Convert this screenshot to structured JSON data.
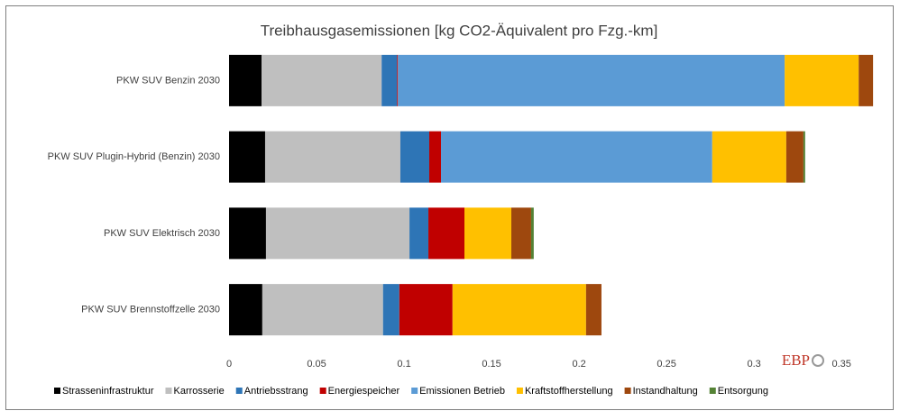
{
  "chart_data": {
    "type": "stacked_bar_horizontal",
    "title": "Treibhausgasemissionen [kg CO2-Äquivalent pro Fzg.-km]",
    "categories": [
      "PKW SUV Benzin 2030",
      "PKW SUV Plugin-Hybrid (Benzin) 2030",
      "PKW SUV Elektrisch 2030",
      "PKW SUV Brennstoffzelle 2030"
    ],
    "series": [
      {
        "name": "Strasseninfrastruktur",
        "color": "#000000",
        "values": [
          0.0186,
          0.0206,
          0.0211,
          0.019
        ]
      },
      {
        "name": "Karrosserie",
        "color": "#bfbfbf",
        "values": [
          0.0686,
          0.0773,
          0.082,
          0.069
        ]
      },
      {
        "name": "Antriebsstrang",
        "color": "#2e75b6",
        "values": [
          0.0088,
          0.0165,
          0.0108,
          0.0093
        ]
      },
      {
        "name": "Energiespeicher",
        "color": "#c00000",
        "values": [
          0.0005,
          0.0067,
          0.0206,
          0.0304
        ]
      },
      {
        "name": "Emissionen Betrieb",
        "color": "#5b9bd5",
        "values": [
          0.221,
          0.155,
          0,
          0
        ]
      },
      {
        "name": "Kraftstoffherstellung",
        "color": "#ffc000",
        "values": [
          0.0423,
          0.0423,
          0.0268,
          0.0763
        ]
      },
      {
        "name": "Instandhaltung",
        "color": "#9e480e",
        "values": [
          0.0082,
          0.0098,
          0.0113,
          0.0088
        ]
      },
      {
        "name": "Entsorgung",
        "color": "#548235",
        "values": [
          0,
          0.001,
          0.0015,
          0
        ]
      }
    ],
    "xlim": [
      0,
      0.37
    ],
    "xticks": [
      0,
      0.05,
      0.1,
      0.15,
      0.2,
      0.25,
      0.3,
      0.35
    ],
    "grid": false,
    "legend": "bottom",
    "logo": "EBP"
  }
}
